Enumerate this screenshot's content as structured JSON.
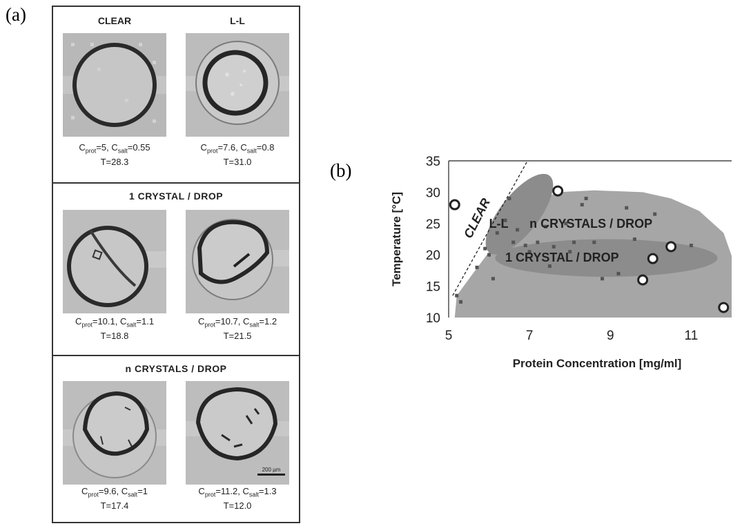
{
  "panel_a_label": "(a)",
  "panel_b_label": "(b)",
  "panel_a": {
    "sections": [
      {
        "cells": [
          {
            "title": "CLEAR",
            "c_prot": "5",
            "c_salt": "0.55",
            "T": "28.3"
          },
          {
            "title": "L-L",
            "c_prot": "7.6",
            "c_salt": "0.8",
            "T": "31.0"
          }
        ]
      },
      {
        "title": "1 CRYSTAL / DROP",
        "cells": [
          {
            "c_prot": "10.1",
            "c_salt": "1.1",
            "T": "18.8"
          },
          {
            "c_prot": "10.7",
            "c_salt": "1.2",
            "T": "21.5"
          }
        ]
      },
      {
        "title": "n CRYSTALS / DROP",
        "cells": [
          {
            "c_prot": "9.6",
            "c_salt": "1",
            "T": "17.4"
          },
          {
            "c_prot": "11.2",
            "c_salt": "1.3",
            "T": "12.0"
          }
        ],
        "scale_bar": "200 µm"
      }
    ],
    "c_prot_sym": "C",
    "c_prot_sub": "prot",
    "c_salt_sub": "salt",
    "t_prefix": "T="
  },
  "chart_data": {
    "type": "scatter",
    "xlabel": "Protein Concentration [mg/ml]",
    "ylabel": "Temperature [°C]",
    "xlim": [
      5,
      12
    ],
    "ylim": [
      10,
      35
    ],
    "xticks": [
      5,
      7,
      9,
      11
    ],
    "yticks": [
      10,
      15,
      20,
      25,
      30,
      35
    ],
    "grid": false,
    "regions": [
      {
        "label": "CLEAR",
        "color": "#ffffff"
      },
      {
        "label": "n CRYSTALS / DROP",
        "color": "#a6a6a6"
      },
      {
        "label": "L-L",
        "color": "#8c8c8c"
      },
      {
        "label": "1 CRYSTAL / DROP",
        "color": "#8c8c8c"
      }
    ],
    "small_points": [
      [
        5.2,
        13.5
      ],
      [
        5.3,
        12.5
      ],
      [
        5.7,
        18
      ],
      [
        5.9,
        21
      ],
      [
        6.1,
        16.2
      ],
      [
        6.2,
        23.5
      ],
      [
        6.4,
        25.5
      ],
      [
        6.6,
        22
      ],
      [
        6.5,
        29
      ],
      [
        6.7,
        24
      ],
      [
        6.9,
        21.5
      ],
      [
        7.2,
        22
      ],
      [
        7.5,
        18.2
      ],
      [
        7.6,
        21.3
      ],
      [
        7.9,
        25
      ],
      [
        8.1,
        22
      ],
      [
        8.3,
        28
      ],
      [
        8.4,
        29
      ],
      [
        8.6,
        22
      ],
      [
        8.8,
        16.2
      ],
      [
        9.2,
        17
      ],
      [
        9.4,
        27.5
      ],
      [
        9.6,
        22.5
      ],
      [
        10.1,
        26.5
      ],
      [
        11.0,
        21.5
      ],
      [
        7.0,
        20.5
      ],
      [
        6.0,
        20
      ],
      [
        7.4,
        24.5
      ],
      [
        8.0,
        20.5
      ]
    ],
    "large_points": [
      [
        5.15,
        28
      ],
      [
        7.7,
        30.2
      ],
      [
        10.5,
        21.3
      ],
      [
        10.05,
        19.4
      ],
      [
        9.8,
        16
      ],
      [
        11.8,
        11.6
      ]
    ]
  }
}
